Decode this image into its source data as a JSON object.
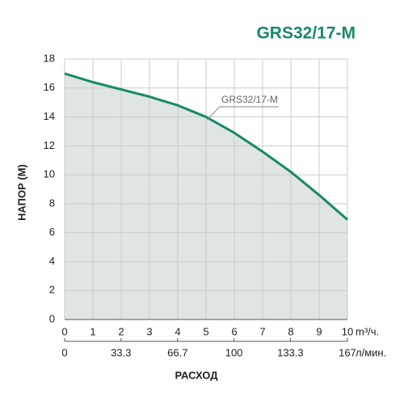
{
  "chart_data": {
    "type": "area",
    "title": "GRS32/17-M",
    "ylabel": "НАПОР (М)",
    "xlabel": "РАСХОД",
    "x_unit": "m³/ч.",
    "x2_unit": "л/мин.",
    "x": [
      0,
      1,
      2,
      3,
      4,
      5,
      6,
      7,
      8,
      9,
      10
    ],
    "series": [
      {
        "name": "GRS32/17-M",
        "color": "#168a68",
        "values": [
          17.0,
          16.4,
          15.9,
          15.4,
          14.8,
          14.0,
          12.9,
          11.6,
          10.2,
          8.6,
          6.9
        ]
      }
    ],
    "fill": "#dfe4e4",
    "xlim": [
      0,
      10
    ],
    "xticks": [
      0,
      1,
      2,
      3,
      4,
      5,
      6,
      7,
      8,
      9,
      10
    ],
    "x2lim": [
      0,
      167
    ],
    "x2ticks": [
      0,
      33.3,
      66.7,
      100,
      133.3,
      167
    ],
    "ylim": [
      0,
      18
    ],
    "yticks": [
      0,
      2,
      4,
      6,
      8,
      10,
      12,
      14,
      16,
      18
    ],
    "grid": true
  }
}
